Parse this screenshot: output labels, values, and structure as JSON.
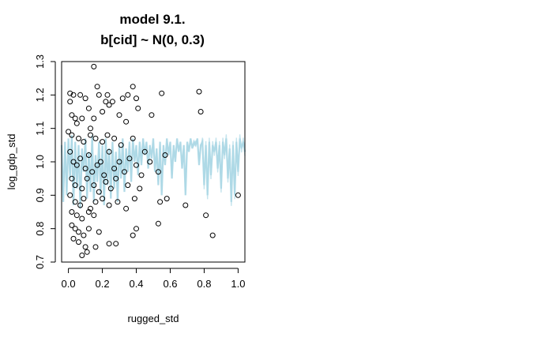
{
  "chart_data": {
    "type": "scatter",
    "title": [
      "model 9.1.",
      "b[cid] ~ N(0, 0.3)"
    ],
    "xlabel": "rugged_std",
    "ylabel": "log_gdp_std",
    "xlim": [
      -0.04,
      1.04
    ],
    "ylim": [
      0.7,
      1.3
    ],
    "x_ticks": [
      0.0,
      0.2,
      0.4,
      0.6,
      0.8,
      1.0
    ],
    "x_tick_labels": [
      "0.0",
      "0.2",
      "0.4",
      "0.6",
      "0.8",
      "1.0"
    ],
    "y_ticks": [
      0.7,
      0.8,
      0.9,
      1.0,
      1.1,
      1.2,
      1.3
    ],
    "y_tick_labels": [
      "0.7",
      "0.8",
      "0.9",
      "1.0",
      "1.1",
      "1.2",
      "1.3"
    ],
    "prior_line_color": "#add8e6",
    "points": [
      {
        "x": 0.01,
        "y": 1.205
      },
      {
        "x": 0.03,
        "y": 1.2
      },
      {
        "x": 0.07,
        "y": 1.2
      },
      {
        "x": 0.1,
        "y": 1.19
      },
      {
        "x": 0.01,
        "y": 1.18
      },
      {
        "x": 0.15,
        "y": 1.285
      },
      {
        "x": 0.17,
        "y": 1.225
      },
      {
        "x": 0.18,
        "y": 1.2
      },
      {
        "x": 0.23,
        "y": 1.2
      },
      {
        "x": 0.38,
        "y": 1.225
      },
      {
        "x": 0.55,
        "y": 1.205
      },
      {
        "x": 0.77,
        "y": 1.21
      },
      {
        "x": 0.78,
        "y": 1.15
      },
      {
        "x": 0.02,
        "y": 1.14
      },
      {
        "x": 0.04,
        "y": 1.13
      },
      {
        "x": 0.05,
        "y": 1.115
      },
      {
        "x": 0.08,
        "y": 1.13
      },
      {
        "x": 0.12,
        "y": 1.16
      },
      {
        "x": 0.13,
        "y": 1.1
      },
      {
        "x": 0.15,
        "y": 1.13
      },
      {
        "x": 0.2,
        "y": 1.15
      },
      {
        "x": 0.22,
        "y": 1.18
      },
      {
        "x": 0.24,
        "y": 1.17
      },
      {
        "x": 0.26,
        "y": 1.18
      },
      {
        "x": 0.3,
        "y": 1.14
      },
      {
        "x": 0.32,
        "y": 1.19
      },
      {
        "x": 0.34,
        "y": 1.12
      },
      {
        "x": 0.35,
        "y": 1.2
      },
      {
        "x": 0.4,
        "y": 1.19
      },
      {
        "x": 0.41,
        "y": 1.16
      },
      {
        "x": 0.49,
        "y": 1.14
      },
      {
        "x": 0.0,
        "y": 1.09
      },
      {
        "x": 0.02,
        "y": 1.08
      },
      {
        "x": 0.06,
        "y": 1.07
      },
      {
        "x": 0.09,
        "y": 1.06
      },
      {
        "x": 0.13,
        "y": 1.08
      },
      {
        "x": 0.16,
        "y": 1.07
      },
      {
        "x": 0.2,
        "y": 1.06
      },
      {
        "x": 0.23,
        "y": 1.08
      },
      {
        "x": 0.27,
        "y": 1.07
      },
      {
        "x": 0.31,
        "y": 1.05
      },
      {
        "x": 0.38,
        "y": 1.07
      },
      {
        "x": 0.45,
        "y": 1.03
      },
      {
        "x": 0.01,
        "y": 1.03
      },
      {
        "x": 0.03,
        "y": 1.0
      },
      {
        "x": 0.05,
        "y": 0.99
      },
      {
        "x": 0.07,
        "y": 1.01
      },
      {
        "x": 0.1,
        "y": 0.98
      },
      {
        "x": 0.12,
        "y": 1.02
      },
      {
        "x": 0.14,
        "y": 0.97
      },
      {
        "x": 0.17,
        "y": 0.99
      },
      {
        "x": 0.19,
        "y": 1.0
      },
      {
        "x": 0.21,
        "y": 0.96
      },
      {
        "x": 0.24,
        "y": 1.03
      },
      {
        "x": 0.27,
        "y": 0.98
      },
      {
        "x": 0.3,
        "y": 1.0
      },
      {
        "x": 0.33,
        "y": 0.97
      },
      {
        "x": 0.36,
        "y": 1.01
      },
      {
        "x": 0.4,
        "y": 0.99
      },
      {
        "x": 0.43,
        "y": 0.96
      },
      {
        "x": 0.48,
        "y": 1.0
      },
      {
        "x": 0.53,
        "y": 0.97
      },
      {
        "x": 0.57,
        "y": 1.02
      },
      {
        "x": 0.02,
        "y": 0.95
      },
      {
        "x": 0.04,
        "y": 0.93
      },
      {
        "x": 0.08,
        "y": 0.92
      },
      {
        "x": 0.11,
        "y": 0.95
      },
      {
        "x": 0.15,
        "y": 0.93
      },
      {
        "x": 0.18,
        "y": 0.91
      },
      {
        "x": 0.22,
        "y": 0.94
      },
      {
        "x": 0.25,
        "y": 0.92
      },
      {
        "x": 0.28,
        "y": 0.95
      },
      {
        "x": 0.35,
        "y": 0.93
      },
      {
        "x": 0.42,
        "y": 0.92
      },
      {
        "x": 0.01,
        "y": 0.9
      },
      {
        "x": 0.04,
        "y": 0.88
      },
      {
        "x": 0.07,
        "y": 0.87
      },
      {
        "x": 0.09,
        "y": 0.89
      },
      {
        "x": 0.13,
        "y": 0.86
      },
      {
        "x": 0.16,
        "y": 0.88
      },
      {
        "x": 0.2,
        "y": 0.89
      },
      {
        "x": 0.24,
        "y": 0.87
      },
      {
        "x": 0.29,
        "y": 0.88
      },
      {
        "x": 0.34,
        "y": 0.86
      },
      {
        "x": 0.39,
        "y": 0.89
      },
      {
        "x": 0.54,
        "y": 0.88
      },
      {
        "x": 0.58,
        "y": 0.89
      },
      {
        "x": 0.69,
        "y": 0.87
      },
      {
        "x": 0.02,
        "y": 0.85
      },
      {
        "x": 0.05,
        "y": 0.84
      },
      {
        "x": 0.08,
        "y": 0.83
      },
      {
        "x": 0.12,
        "y": 0.85
      },
      {
        "x": 0.15,
        "y": 0.84
      },
      {
        "x": 0.81,
        "y": 0.84
      },
      {
        "x": 0.02,
        "y": 0.81
      },
      {
        "x": 0.04,
        "y": 0.8
      },
      {
        "x": 0.06,
        "y": 0.79
      },
      {
        "x": 0.09,
        "y": 0.78
      },
      {
        "x": 0.12,
        "y": 0.8
      },
      {
        "x": 0.18,
        "y": 0.79
      },
      {
        "x": 0.38,
        "y": 0.78
      },
      {
        "x": 0.4,
        "y": 0.8
      },
      {
        "x": 0.53,
        "y": 0.815
      },
      {
        "x": 0.85,
        "y": 0.78
      },
      {
        "x": 0.03,
        "y": 0.77
      },
      {
        "x": 0.06,
        "y": 0.76
      },
      {
        "x": 0.1,
        "y": 0.745
      },
      {
        "x": 0.16,
        "y": 0.745
      },
      {
        "x": 0.24,
        "y": 0.755
      },
      {
        "x": 0.28,
        "y": 0.755
      },
      {
        "x": 0.08,
        "y": 0.72
      },
      {
        "x": 0.11,
        "y": 0.73
      },
      {
        "x": 1.0,
        "y": 0.9
      }
    ],
    "prior_line": [
      {
        "x": -0.04,
        "y": 1.05
      },
      {
        "x": -0.03,
        "y": 0.88
      },
      {
        "x": -0.02,
        "y": 1.06
      },
      {
        "x": -0.01,
        "y": 0.9
      },
      {
        "x": 0.0,
        "y": 1.07
      },
      {
        "x": 0.01,
        "y": 0.95
      },
      {
        "x": 0.02,
        "y": 1.08
      },
      {
        "x": 0.03,
        "y": 0.87
      },
      {
        "x": 0.04,
        "y": 1.06
      },
      {
        "x": 0.05,
        "y": 0.92
      },
      {
        "x": 0.06,
        "y": 1.05
      },
      {
        "x": 0.07,
        "y": 0.86
      },
      {
        "x": 0.08,
        "y": 1.04
      },
      {
        "x": 0.09,
        "y": 0.97
      },
      {
        "x": 0.1,
        "y": 1.07
      },
      {
        "x": 0.11,
        "y": 0.89
      },
      {
        "x": 0.12,
        "y": 1.03
      },
      {
        "x": 0.13,
        "y": 0.91
      },
      {
        "x": 0.14,
        "y": 1.08
      },
      {
        "x": 0.15,
        "y": 0.88
      },
      {
        "x": 0.16,
        "y": 1.02
      },
      {
        "x": 0.17,
        "y": 0.94
      },
      {
        "x": 0.18,
        "y": 1.06
      },
      {
        "x": 0.19,
        "y": 0.9
      },
      {
        "x": 0.2,
        "y": 1.05
      },
      {
        "x": 0.21,
        "y": 0.87
      },
      {
        "x": 0.22,
        "y": 1.07
      },
      {
        "x": 0.23,
        "y": 0.93
      },
      {
        "x": 0.24,
        "y": 1.04
      },
      {
        "x": 0.25,
        "y": 0.89
      },
      {
        "x": 0.26,
        "y": 1.06
      },
      {
        "x": 0.27,
        "y": 0.92
      },
      {
        "x": 0.28,
        "y": 1.03
      },
      {
        "x": 0.29,
        "y": 0.88
      },
      {
        "x": 0.3,
        "y": 1.05
      },
      {
        "x": 0.31,
        "y": 0.95
      },
      {
        "x": 0.32,
        "y": 1.07
      },
      {
        "x": 0.33,
        "y": 0.91
      },
      {
        "x": 0.34,
        "y": 1.04
      },
      {
        "x": 0.35,
        "y": 0.97
      },
      {
        "x": 0.36,
        "y": 1.06
      },
      {
        "x": 0.37,
        "y": 0.94
      },
      {
        "x": 0.38,
        "y": 1.07
      },
      {
        "x": 0.39,
        "y": 1.0
      },
      {
        "x": 0.4,
        "y": 1.05
      },
      {
        "x": 0.41,
        "y": 0.96
      },
      {
        "x": 0.42,
        "y": 1.06
      },
      {
        "x": 0.43,
        "y": 0.99
      },
      {
        "x": 0.44,
        "y": 1.07
      },
      {
        "x": 0.45,
        "y": 1.02
      },
      {
        "x": 0.46,
        "y": 1.06
      },
      {
        "x": 0.47,
        "y": 0.98
      },
      {
        "x": 0.48,
        "y": 1.05
      },
      {
        "x": 0.49,
        "y": 1.01
      },
      {
        "x": 0.5,
        "y": 1.07
      },
      {
        "x": 0.51,
        "y": 0.97
      },
      {
        "x": 0.52,
        "y": 1.04
      },
      {
        "x": 0.53,
        "y": 0.93
      },
      {
        "x": 0.54,
        "y": 1.06
      },
      {
        "x": 0.55,
        "y": 0.9
      },
      {
        "x": 0.56,
        "y": 1.05
      },
      {
        "x": 0.57,
        "y": 0.99
      },
      {
        "x": 0.58,
        "y": 1.07
      },
      {
        "x": 0.59,
        "y": 1.02
      },
      {
        "x": 0.6,
        "y": 1.06
      },
      {
        "x": 0.61,
        "y": 0.95
      },
      {
        "x": 0.62,
        "y": 1.05
      },
      {
        "x": 0.63,
        "y": 1.0
      },
      {
        "x": 0.64,
        "y": 1.07
      },
      {
        "x": 0.65,
        "y": 1.03
      },
      {
        "x": 0.66,
        "y": 1.06
      },
      {
        "x": 0.67,
        "y": 0.98
      },
      {
        "x": 0.68,
        "y": 1.05
      },
      {
        "x": 0.69,
        "y": 0.9
      },
      {
        "x": 0.7,
        "y": 1.06
      },
      {
        "x": 0.71,
        "y": 1.03
      },
      {
        "x": 0.72,
        "y": 1.07
      },
      {
        "x": 0.73,
        "y": 1.04
      },
      {
        "x": 0.74,
        "y": 1.06
      },
      {
        "x": 0.75,
        "y": 1.05
      },
      {
        "x": 0.76,
        "y": 1.07
      },
      {
        "x": 0.77,
        "y": 0.99
      },
      {
        "x": 0.78,
        "y": 1.05
      },
      {
        "x": 0.79,
        "y": 1.06
      },
      {
        "x": 0.8,
        "y": 0.93
      },
      {
        "x": 0.81,
        "y": 1.05
      },
      {
        "x": 0.82,
        "y": 0.9
      },
      {
        "x": 0.83,
        "y": 1.06
      },
      {
        "x": 0.84,
        "y": 0.96
      },
      {
        "x": 0.85,
        "y": 1.05
      },
      {
        "x": 0.86,
        "y": 1.03
      },
      {
        "x": 0.87,
        "y": 1.06
      },
      {
        "x": 0.88,
        "y": 0.98
      },
      {
        "x": 0.89,
        "y": 1.05
      },
      {
        "x": 0.9,
        "y": 0.92
      },
      {
        "x": 0.91,
        "y": 1.06
      },
      {
        "x": 0.92,
        "y": 1.02
      },
      {
        "x": 0.93,
        "y": 1.07
      },
      {
        "x": 0.94,
        "y": 0.95
      },
      {
        "x": 0.95,
        "y": 1.04
      },
      {
        "x": 0.96,
        "y": 0.88
      },
      {
        "x": 0.97,
        "y": 1.05
      },
      {
        "x": 0.98,
        "y": 0.9
      },
      {
        "x": 0.99,
        "y": 1.06
      },
      {
        "x": 1.0,
        "y": 0.97
      },
      {
        "x": 1.01,
        "y": 1.07
      },
      {
        "x": 1.02,
        "y": 1.04
      },
      {
        "x": 1.03,
        "y": 1.06
      },
      {
        "x": 1.04,
        "y": 1.03
      }
    ]
  }
}
